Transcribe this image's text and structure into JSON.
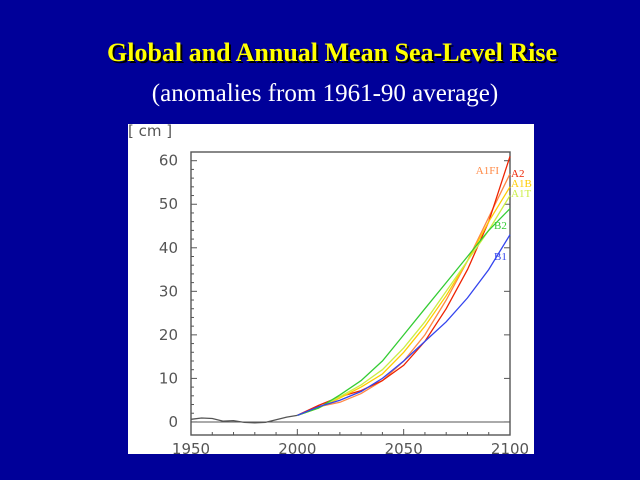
{
  "slide": {
    "title": "Global and Annual Mean Sea-Level Rise",
    "subtitle": "(anomalies from 1961-90 average)"
  },
  "colors": {
    "background": "#000099",
    "title": "#ffff00",
    "subtitle": "#ffffff",
    "historical": "#555555"
  },
  "chart_data": {
    "type": "line",
    "title": "Global and Annual Mean Sea-Level Rise",
    "subtitle": "(anomalies from 1961-90 average)",
    "unit_label": "[ cm ]",
    "xlim": [
      1950,
      2100
    ],
    "ylim": [
      -3,
      62
    ],
    "x_ticks": [
      1950,
      2000,
      2050,
      2100
    ],
    "y_ticks": [
      0,
      10,
      20,
      30,
      40,
      50,
      60
    ],
    "grid": false,
    "legend": "inline labels at right end of each line",
    "series": [
      {
        "name": "",
        "color": "#555555",
        "x": [
          1950,
          1955,
          1960,
          1965,
          1970,
          1975,
          1980,
          1985,
          1990,
          1995,
          2000
        ],
        "y": [
          0.6,
          0.9,
          0.8,
          0.2,
          0.3,
          -0.1,
          -0.2,
          -0.1,
          0.5,
          1.1,
          1.5
        ]
      },
      {
        "name": "A1FI",
        "color": "#ff8844",
        "x": [
          2000,
          2010,
          2020,
          2030,
          2040,
          2050,
          2060,
          2070,
          2080,
          2090,
          2100
        ],
        "y": [
          1.5,
          3.5,
          4.5,
          6.5,
          9.5,
          14,
          20,
          28,
          37,
          47,
          57
        ]
      },
      {
        "name": "A2",
        "color": "#ee2200",
        "x": [
          2000,
          2010,
          2020,
          2030,
          2040,
          2050,
          2060,
          2070,
          2080,
          2090,
          2100
        ],
        "y": [
          1.5,
          3.8,
          5.8,
          7.2,
          9.5,
          13,
          18.5,
          26,
          35,
          46,
          61
        ]
      },
      {
        "name": "A1B",
        "color": "#ffcc00",
        "x": [
          2000,
          2010,
          2020,
          2030,
          2040,
          2050,
          2060,
          2070,
          2080,
          2090,
          2100
        ],
        "y": [
          1.5,
          3.2,
          5.5,
          8,
          11,
          16,
          22,
          29,
          37,
          46,
          54
        ]
      },
      {
        "name": "A1T",
        "color": "#ccee44",
        "x": [
          2000,
          2010,
          2020,
          2030,
          2040,
          2050,
          2060,
          2070,
          2080,
          2090,
          2100
        ],
        "y": [
          1.5,
          3.2,
          5.8,
          8.5,
          12,
          17,
          23,
          30,
          37,
          44,
          52
        ]
      },
      {
        "name": "B2",
        "color": "#33cc33",
        "x": [
          2000,
          2010,
          2020,
          2030,
          2040,
          2050,
          2060,
          2070,
          2080,
          2090,
          2100
        ],
        "y": [
          1.5,
          3.2,
          6.2,
          9.5,
          14,
          20,
          26,
          32,
          38,
          44,
          49
        ]
      },
      {
        "name": "B1",
        "color": "#3344ee",
        "x": [
          2000,
          2010,
          2020,
          2030,
          2040,
          2050,
          2060,
          2070,
          2080,
          2090,
          2100
        ],
        "y": [
          1.5,
          3.5,
          5,
          7,
          10,
          14,
          18.5,
          23,
          28.5,
          35,
          43
        ]
      }
    ]
  }
}
